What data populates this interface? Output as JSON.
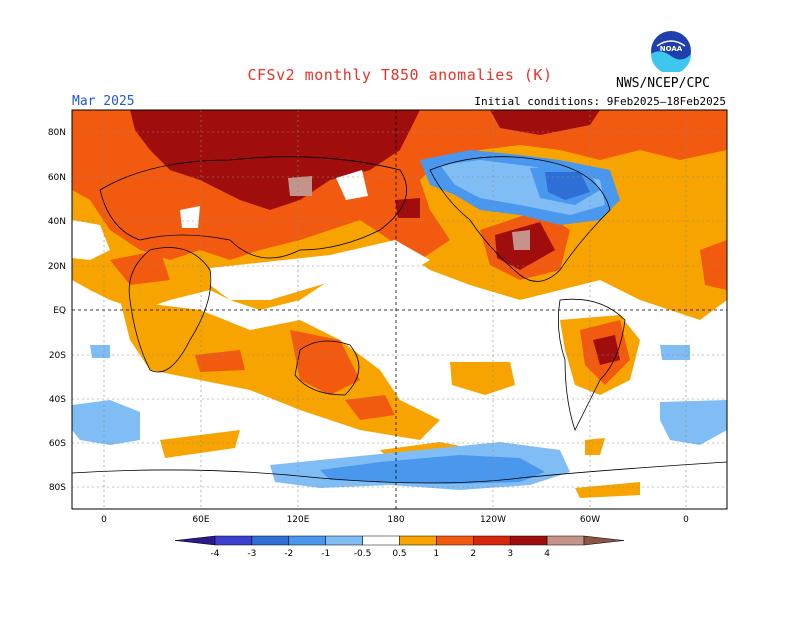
{
  "title": "CFSv2 monthly T850 anomalies (K)",
  "month": "Mar 2025",
  "initial_conditions": "Initial conditions: 9Feb2025–18Feb2025",
  "agency": "NWS/NCEP/CPC",
  "logo_text": "NOAA",
  "lat_labels": [
    "80N",
    "60N",
    "40N",
    "20N",
    "EQ",
    "20S",
    "40S",
    "60S",
    "80S"
  ],
  "lon_labels": [
    "0",
    "60E",
    "120E",
    "180",
    "120W",
    "60W",
    "0"
  ],
  "colorbar": {
    "levels": [
      "-4",
      "-3",
      "-2",
      "-1",
      "-0.5",
      "0.5",
      "1",
      "2",
      "3",
      "4"
    ],
    "colors": [
      "#2a1a8c",
      "#3a3fcf",
      "#2e6fd6",
      "#4a98ee",
      "#80bdf5",
      "#ffffff",
      "#f7a400",
      "#f25a10",
      "#d6260e",
      "#a00d0d",
      "#c4948a",
      "#8c5444"
    ]
  }
}
